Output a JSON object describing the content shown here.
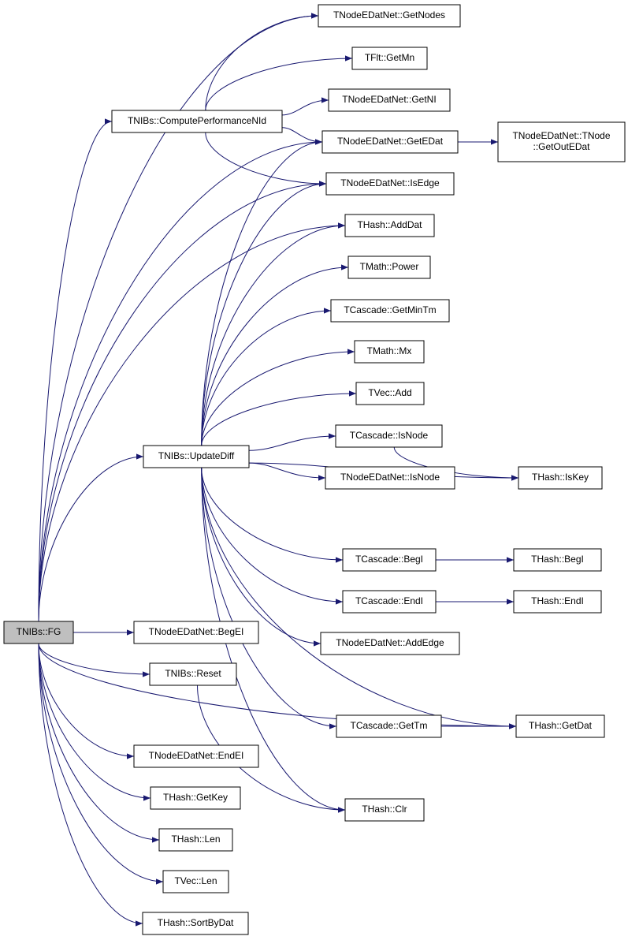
{
  "nodes": [
    {
      "label": "TNIBs::FG"
    },
    {
      "label": "TNodeEDatNet::GetNodes"
    },
    {
      "label": "TFlt::GetMn"
    },
    {
      "label": "TNIBs::ComputePerformanceNId"
    },
    {
      "label": "TNodeEDatNet::GetNI"
    },
    {
      "label": "TNodeEDatNet::GetEDat"
    },
    {
      "label": "TNodeEDatNet::TNode\n::GetOutEDat"
    },
    {
      "label": "TNodeEDatNet::IsEdge"
    },
    {
      "label": "THash::AddDat"
    },
    {
      "label": "TMath::Power"
    },
    {
      "label": "TCascade::GetMinTm"
    },
    {
      "label": "TMath::Mx"
    },
    {
      "label": "TVec::Add"
    },
    {
      "label": "TNIBs::UpdateDiff"
    },
    {
      "label": "TCascade::IsNode"
    },
    {
      "label": "TNodeEDatNet::IsNode"
    },
    {
      "label": "THash::IsKey"
    },
    {
      "label": "TCascade::BegI"
    },
    {
      "label": "THash::BegI"
    },
    {
      "label": "TCascade::EndI"
    },
    {
      "label": "THash::EndI"
    },
    {
      "label": "TNodeEDatNet::BegEI"
    },
    {
      "label": "TNodeEDatNet::AddEdge"
    },
    {
      "label": "TNIBs::Reset"
    },
    {
      "label": "TCascade::GetTm"
    },
    {
      "label": "THash::GetDat"
    },
    {
      "label": "TNodeEDatNet::EndEI"
    },
    {
      "label": "THash::GetKey"
    },
    {
      "label": "THash::Clr"
    },
    {
      "label": "THash::Len"
    },
    {
      "label": "TVec::Len"
    },
    {
      "label": "THash::SortByDat"
    }
  ]
}
